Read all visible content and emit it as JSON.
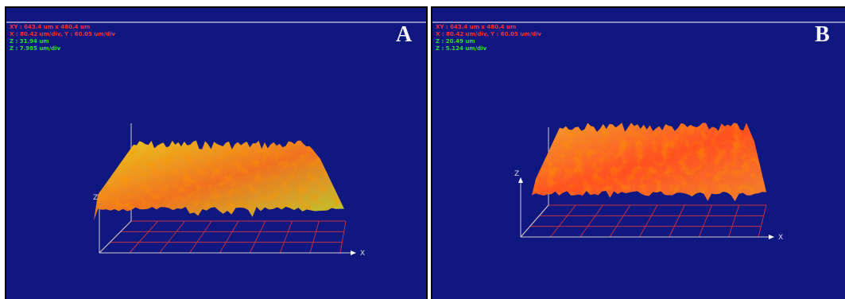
{
  "panels": [
    {
      "label": "A",
      "info": [
        "XY : 643.4 um x 480.4 um",
        "X : 80.42 um/div, Y : 60.05 um/div",
        "Z : 31.94 um",
        "Z : 7.985 um/div"
      ],
      "z_axis": "Z",
      "x_axis": "X"
    },
    {
      "label": "B",
      "info": [
        "XY : 643.4 um x 480.4 um",
        "X : 80.42 um/div, Y : 60.05 um/div",
        "Z : 20.49 um",
        "Z : 5.124 um/div"
      ],
      "z_axis": "Z",
      "x_axis": "X"
    }
  ]
}
